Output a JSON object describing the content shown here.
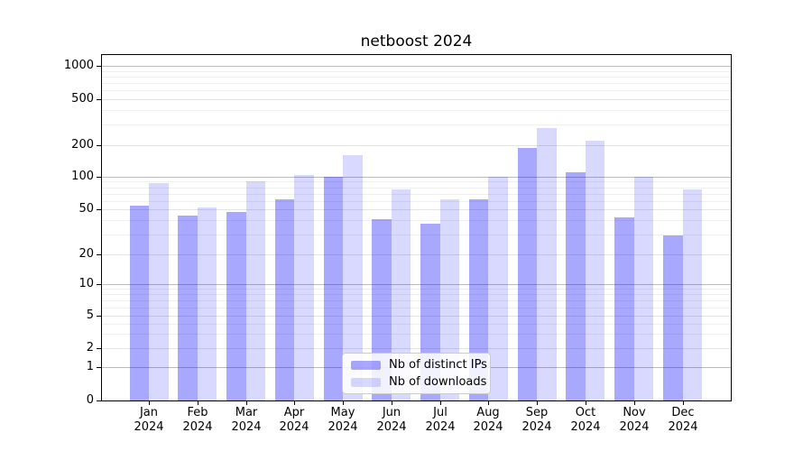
{
  "title": "netboost 2024",
  "legend": {
    "position": "lower center",
    "items": [
      {
        "label": "Nb of distinct IPs",
        "color_hex": "#a9a9f9",
        "fill": "rgba(0,0,255,0.34)"
      },
      {
        "label": "Nb of downloads",
        "color_hex": "#d9d9fb",
        "fill": "rgba(0,0,255,0.15)"
      }
    ]
  },
  "axes": {
    "y_tick_labels": [
      "1000",
      "500",
      "200",
      "100",
      "50",
      "20",
      "10",
      "5",
      "2",
      "1",
      "0"
    ],
    "x_tick_labels": [
      "Jan 2024",
      "Feb 2024",
      "Mar 2024",
      "Apr 2024",
      "May 2024",
      "Jun 2024",
      "Jul 2024",
      "Aug 2024",
      "Sep 2024",
      "Oct 2024",
      "Nov 2024",
      "Dec 2024"
    ]
  },
  "chart_data": {
    "type": "bar",
    "title": "netboost 2024",
    "x_months": [
      "Jan",
      "Feb",
      "Mar",
      "Apr",
      "May",
      "Jun",
      "Jul",
      "Aug",
      "Sep",
      "Oct",
      "Nov",
      "Dec"
    ],
    "x_year": "2024",
    "series": [
      {
        "name": "Nb of distinct IPs",
        "fill": "rgba(0,0,255,0.34)",
        "color_hex": "#a9a9f9",
        "values": [
          54,
          44,
          47,
          62,
          100,
          41,
          37,
          62,
          185,
          110,
          42,
          29
        ]
      },
      {
        "name": "Nb of downloads",
        "fill": "rgba(0,0,255,0.15)",
        "color_hex": "#d9d9fb",
        "values": [
          88,
          52,
          91,
          104,
          160,
          77,
          62,
          100,
          280,
          218,
          100,
          77
        ]
      }
    ],
    "y_ticks": [
      1000,
      500,
      200,
      100,
      50,
      20,
      10,
      5,
      2,
      1,
      0
    ],
    "y_scale": "log-like (symlog with 0 at baseline)",
    "ylim": [
      0,
      1500
    ],
    "grid": true,
    "legend_position": "lower center",
    "grid_colors": {
      "major": "#bcbcbc",
      "labeled_minor": "#e4e4e4",
      "minor": "#efefef"
    }
  }
}
